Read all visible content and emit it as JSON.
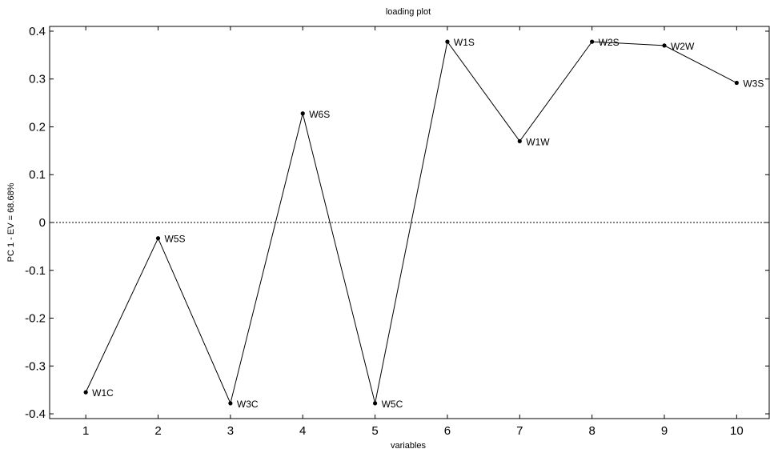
{
  "chart_data": {
    "type": "line",
    "title": "loading plot",
    "xlabel": "variables",
    "ylabel": "PC 1 - EV = 68.68%",
    "x": [
      1,
      2,
      3,
      4,
      5,
      6,
      7,
      8,
      9,
      10
    ],
    "series": [
      {
        "values": [
          -0.355,
          -0.033,
          -0.378,
          0.228,
          -0.378,
          0.378,
          0.17,
          0.378,
          0.37,
          0.292
        ],
        "point_labels": [
          "W1C",
          "W5S",
          "W3C",
          "W6S",
          "W5C",
          "W1S",
          "W1W",
          "W2S",
          "W2W",
          "W3S"
        ]
      }
    ],
    "xlim": [
      0.5,
      10.45
    ],
    "ylim": [
      -0.41,
      0.41
    ],
    "xticks": [
      1,
      2,
      3,
      4,
      5,
      6,
      7,
      8,
      9,
      10
    ],
    "yticks": [
      -0.4,
      -0.3,
      -0.2,
      -0.1,
      0,
      0.1,
      0.2,
      0.3,
      0.4
    ],
    "ytick_labels": [
      "-0.4",
      "-0.3",
      "-0.2",
      "-0.1",
      "0",
      "0.1",
      "0.2",
      "0.3",
      "0.4"
    ],
    "reference_line_y": 0,
    "grid": false,
    "line_color": "#000000",
    "marker_color": "#000000"
  }
}
